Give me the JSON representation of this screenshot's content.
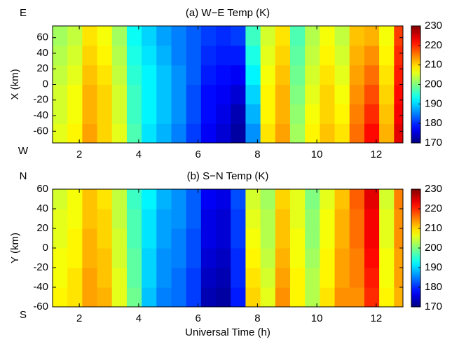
{
  "chart_data": [
    {
      "type": "heatmap",
      "title": "(a) W−E Temp (K)",
      "ylabel": "X (km)",
      "y_end_labels": {
        "top": "E",
        "bottom": "W"
      },
      "x": [
        1.35,
        1.85,
        2.35,
        2.85,
        3.35,
        3.85,
        4.35,
        4.85,
        5.35,
        5.85,
        6.35,
        6.85,
        7.35,
        7.85,
        8.35,
        8.85,
        9.35,
        9.85,
        10.35,
        10.85,
        11.35,
        11.85,
        12.35,
        12.85
      ],
      "y": [
        -62.5,
        -37.5,
        -12.5,
        12.5,
        37.5,
        62.5
      ],
      "z": [
        [
          206,
          208,
          213,
          210,
          206,
          197,
          191,
          188,
          185,
          181,
          177,
          175,
          172,
          186,
          209,
          213,
          202,
          208,
          211,
          209,
          216,
          222,
          212,
          224
        ],
        [
          205,
          207,
          212,
          210,
          205,
          196,
          192,
          189,
          186,
          182,
          178,
          176,
          173,
          188,
          208,
          212,
          201,
          207,
          210,
          208,
          215,
          220,
          211,
          223
        ],
        [
          205,
          207,
          212,
          210,
          205,
          196,
          192,
          189,
          186,
          182,
          178,
          177,
          175,
          190,
          208,
          212,
          200,
          206,
          210,
          207,
          214,
          218,
          210,
          222
        ],
        [
          204,
          206,
          211,
          209,
          204,
          195,
          192,
          189,
          186,
          183,
          179,
          178,
          177,
          192,
          207,
          211,
          199,
          205,
          209,
          206,
          213,
          216,
          209,
          221
        ],
        [
          203,
          205,
          210,
          208,
          203,
          194,
          191,
          188,
          185,
          183,
          180,
          179,
          179,
          194,
          206,
          210,
          198,
          204,
          208,
          205,
          212,
          214,
          208,
          220
        ],
        [
          202,
          204,
          209,
          207,
          202,
          193,
          190,
          187,
          185,
          183,
          181,
          180,
          181,
          196,
          205,
          209,
          197,
          203,
          207,
          204,
          211,
          212,
          207,
          219
        ]
      ],
      "xlim": [
        1.1,
        12.9
      ],
      "xticks": [
        2,
        4,
        6,
        8,
        10,
        12
      ],
      "ylim": [
        -75,
        75
      ],
      "yticks": [
        -60,
        -40,
        -20,
        0,
        20,
        40,
        60
      ],
      "colormap": "jet",
      "clim": [
        170,
        230
      ],
      "cticks": [
        170,
        180,
        190,
        200,
        210,
        220,
        230
      ]
    },
    {
      "type": "heatmap",
      "title": "(b) S−N Temp (K)",
      "ylabel": "Y (km)",
      "xlabel": "Universal Time (h)",
      "y_end_labels": {
        "top": "N",
        "bottom": "S"
      },
      "x": [
        1.35,
        1.85,
        2.35,
        2.85,
        3.35,
        3.85,
        4.35,
        4.85,
        5.35,
        5.85,
        6.35,
        6.85,
        7.35,
        7.85,
        8.35,
        8.85,
        9.35,
        9.85,
        10.35,
        10.85,
        11.35,
        11.85,
        12.35,
        12.85
      ],
      "y": [
        -50,
        -30,
        -10,
        10,
        30,
        50
      ],
      "z": [
        [
          208,
          209,
          213,
          212,
          206,
          199,
          189,
          185,
          184,
          181,
          173,
          172,
          179,
          210,
          206,
          214,
          208,
          203,
          209,
          214,
          214,
          220,
          208,
          212
        ],
        [
          207,
          209,
          213,
          211,
          206,
          198,
          190,
          186,
          184,
          181,
          174,
          173,
          180,
          209,
          205,
          213,
          208,
          203,
          208,
          213,
          215,
          221,
          207,
          213
        ],
        [
          207,
          208,
          212,
          211,
          205,
          198,
          190,
          186,
          185,
          182,
          175,
          174,
          180,
          208,
          204,
          212,
          207,
          202,
          208,
          213,
          215,
          222,
          207,
          213
        ],
        [
          206,
          208,
          212,
          210,
          205,
          197,
          191,
          187,
          185,
          182,
          176,
          175,
          181,
          207,
          203,
          211,
          207,
          201,
          207,
          212,
          216,
          223,
          206,
          214
        ],
        [
          206,
          207,
          211,
          210,
          204,
          197,
          191,
          187,
          186,
          183,
          176,
          175,
          181,
          206,
          203,
          211,
          206,
          201,
          207,
          212,
          216,
          223,
          206,
          214
        ],
        [
          205,
          207,
          211,
          209,
          204,
          196,
          192,
          188,
          186,
          183,
          177,
          176,
          182,
          205,
          202,
          210,
          206,
          200,
          206,
          211,
          217,
          224,
          205,
          215
        ]
      ],
      "xlim": [
        1.1,
        12.9
      ],
      "xticks": [
        2,
        4,
        6,
        8,
        10,
        12
      ],
      "ylim": [
        -60,
        60
      ],
      "yticks": [
        -60,
        -40,
        -20,
        0,
        20,
        40,
        60
      ],
      "colormap": "jet",
      "clim": [
        170,
        230
      ],
      "cticks": [
        170,
        180,
        190,
        200,
        210,
        220,
        230
      ]
    }
  ]
}
